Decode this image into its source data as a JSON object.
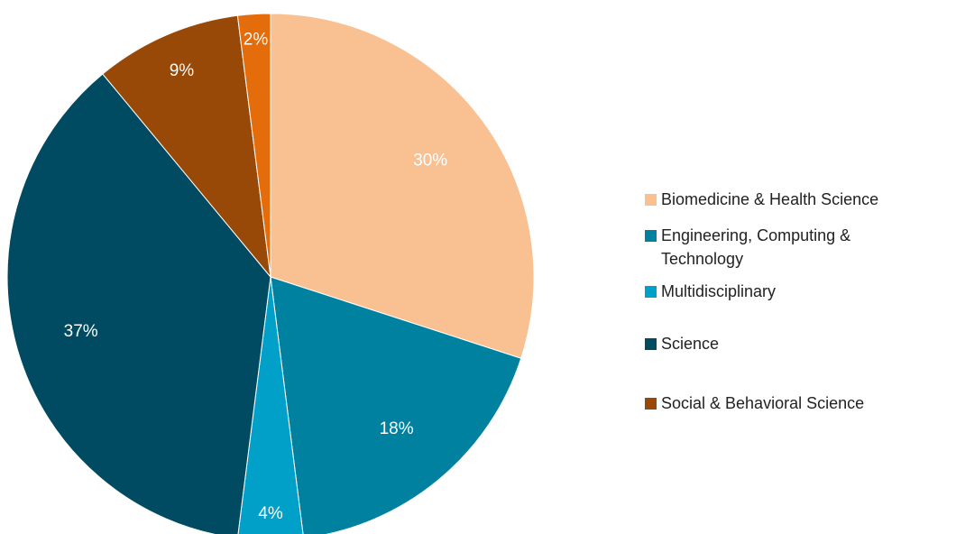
{
  "chart_data": {
    "type": "pie",
    "categories": [
      "Biomedicine & Health Science",
      "Engineering, Computing & Technology",
      "Multidisciplinary",
      "Science",
      "Social & Behavioral Science",
      null
    ],
    "values": [
      30,
      18,
      4,
      37,
      9,
      2
    ],
    "value_labels": [
      "30%",
      "18%",
      "4%",
      "37%",
      "9%",
      "2%"
    ],
    "colors": [
      "#f9c192",
      "#0081a0",
      "#00a0c8",
      "#004b61",
      "#984807",
      "#e46c0a"
    ],
    "legend": "right"
  }
}
